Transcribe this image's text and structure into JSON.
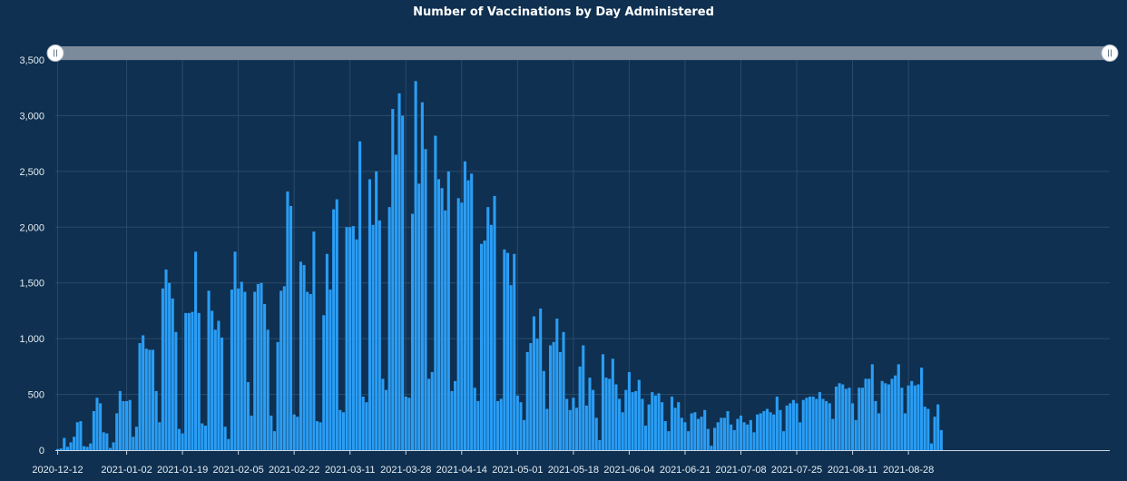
{
  "chart_data": {
    "type": "bar",
    "title": "Number of Vaccinations by Day Administered",
    "xlabel": "",
    "ylabel": "",
    "ylim": [
      0,
      3500
    ],
    "y_ticks": [
      0,
      500,
      1000,
      1500,
      2000,
      2500,
      3000,
      3500
    ],
    "y_tick_labels": [
      "0",
      "500",
      "1,000",
      "1,500",
      "2,000",
      "2,500",
      "3,000",
      "3,500"
    ],
    "grid": true,
    "start_date": "2020-12-12",
    "x_tick_labels": [
      "2020-12-12",
      "2021-01-02",
      "2021-01-19",
      "2021-02-05",
      "2021-02-22",
      "2021-03-11",
      "2021-03-28",
      "2021-04-14",
      "2021-05-01",
      "2021-05-18",
      "2021-06-04",
      "2021-06-21",
      "2021-07-08",
      "2021-07-25",
      "2021-08-11",
      "2021-08-28"
    ],
    "x_tick_day_offsets": [
      0,
      21,
      38,
      55,
      72,
      89,
      106,
      123,
      140,
      157,
      174,
      191,
      208,
      225,
      242,
      259
    ],
    "range_slider": {
      "start_fraction": 0,
      "end_fraction": 1
    },
    "values": [
      10,
      15,
      110,
      30,
      70,
      120,
      250,
      260,
      35,
      30,
      60,
      350,
      470,
      420,
      160,
      150,
      20,
      70,
      330,
      530,
      440,
      440,
      450,
      120,
      210,
      960,
      1030,
      910,
      900,
      900,
      530,
      250,
      1450,
      1620,
      1500,
      1360,
      1060,
      190,
      150,
      1230,
      1230,
      1240,
      1780,
      1230,
      240,
      220,
      1430,
      1250,
      1080,
      1160,
      1010,
      210,
      100,
      1440,
      1780,
      1450,
      1510,
      1420,
      610,
      310,
      1420,
      1490,
      1500,
      1310,
      1080,
      310,
      170,
      970,
      1430,
      1470,
      2320,
      2190,
      320,
      300,
      1690,
      1660,
      1420,
      1400,
      1960,
      260,
      250,
      1210,
      1760,
      1440,
      2160,
      2250,
      360,
      340,
      2000,
      2000,
      2010,
      1890,
      2770,
      480,
      430,
      2430,
      2020,
      2500,
      2060,
      640,
      540,
      2180,
      3060,
      2650,
      3200,
      3000,
      480,
      470,
      2120,
      3310,
      2390,
      3120,
      2700,
      640,
      700,
      2820,
      2430,
      2350,
      2150,
      2500,
      530,
      620,
      2260,
      2220,
      2590,
      2420,
      2480,
      560,
      440,
      1850,
      1880,
      2180,
      2020,
      2280,
      440,
      460,
      1800,
      1770,
      1480,
      1760,
      490,
      430,
      270,
      880,
      960,
      1200,
      1000,
      1270,
      710,
      370,
      940,
      970,
      1180,
      880,
      1060,
      460,
      360,
      470,
      380,
      750,
      940,
      400,
      650,
      540,
      290,
      90,
      860,
      650,
      640,
      820,
      590,
      460,
      340,
      540,
      700,
      520,
      530,
      630,
      460,
      220,
      410,
      520,
      490,
      510,
      430,
      260,
      170,
      480,
      380,
      430,
      290,
      250,
      170,
      330,
      340,
      280,
      300,
      360,
      190,
      40,
      200,
      250,
      290,
      290,
      350,
      230,
      180,
      280,
      310,
      250,
      230,
      270,
      160,
      320,
      330,
      350,
      370,
      340,
      320,
      480,
      360,
      170,
      400,
      420,
      450,
      420,
      250,
      450,
      470,
      480,
      480,
      460,
      520,
      460,
      440,
      420,
      280,
      570,
      600,
      590,
      550,
      560,
      420,
      270,
      560,
      560,
      640,
      640,
      770,
      440,
      330,
      620,
      600,
      590,
      640,
      670,
      770,
      560,
      330,
      580,
      620,
      580,
      590,
      740,
      390,
      370,
      60,
      300,
      410,
      180
    ]
  }
}
